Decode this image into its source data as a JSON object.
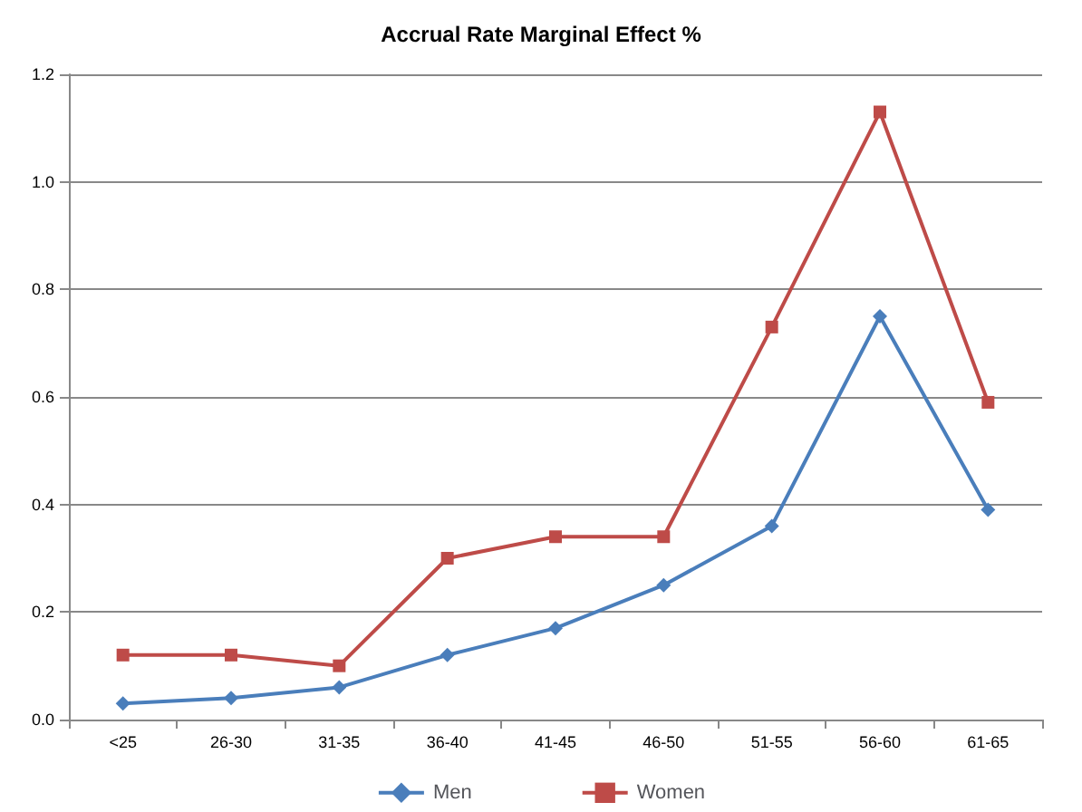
{
  "chart_data": {
    "type": "line",
    "title": "Accrual Rate Marginal Effect %",
    "categories": [
      "<25",
      "26-30",
      "31-35",
      "36-40",
      "41-45",
      "46-50",
      "51-55",
      "56-60",
      "61-65"
    ],
    "series": [
      {
        "name": "Men",
        "color": "#4a7ebb",
        "marker": "diamond",
        "values": [
          0.03,
          0.04,
          0.06,
          0.12,
          0.17,
          0.25,
          0.36,
          0.75,
          0.39
        ]
      },
      {
        "name": "Women",
        "color": "#be4b48",
        "marker": "square",
        "values": [
          0.12,
          0.12,
          0.1,
          0.3,
          0.34,
          0.34,
          0.73,
          1.13,
          0.59
        ]
      }
    ],
    "ylim": [
      0,
      1.2
    ],
    "yticks": [
      {
        "value": 0,
        "label": "0.0"
      },
      {
        "value": 0.2,
        "label": "0.2"
      },
      {
        "value": 0.4,
        "label": "0.4"
      },
      {
        "value": 0.6,
        "label": "0.6"
      },
      {
        "value": 0.8,
        "label": "0.8"
      },
      {
        "value": 1,
        "label": "1.0"
      },
      {
        "value": 1.2,
        "label": "1.2"
      }
    ],
    "grid": "y",
    "legend": "bottom"
  }
}
